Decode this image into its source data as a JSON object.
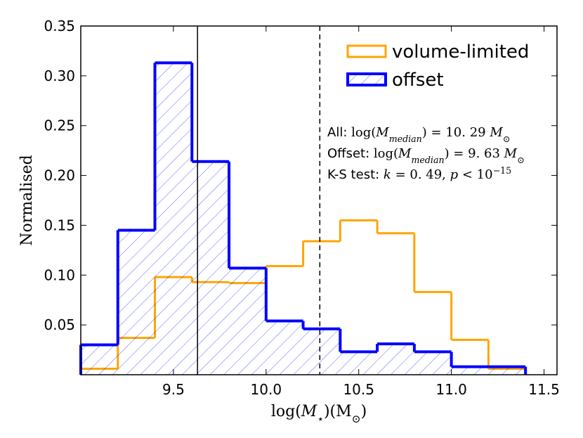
{
  "chart_data": {
    "type": "histogram",
    "bins": [
      9.0,
      9.2,
      9.4,
      9.6,
      9.8,
      10.0,
      10.2,
      10.4,
      10.6,
      10.8,
      11.0,
      11.2,
      11.4
    ],
    "series": [
      {
        "name": "volume-limited",
        "color": "#ffa500",
        "hatch": false,
        "values": [
          0.006,
          0.037,
          0.098,
          0.093,
          0.092,
          0.109,
          0.134,
          0.155,
          0.142,
          0.083,
          0.035,
          0.006
        ]
      },
      {
        "name": "offset",
        "color": "#0000ff",
        "hatch": true,
        "values": [
          0.03,
          0.145,
          0.313,
          0.214,
          0.107,
          0.054,
          0.046,
          0.023,
          0.031,
          0.023,
          0.008,
          0.008
        ]
      }
    ],
    "xlim": [
      9.0,
      11.57
    ],
    "ylim": [
      0,
      0.35
    ],
    "xticks": [
      9.5,
      {
        "value": 10.0,
        "label": "10.0"
      },
      10.5,
      {
        "value": 11.0,
        "label": "11.0"
      },
      11.5
    ],
    "yticks": [
      0.05,
      {
        "value": 0.1,
        "label": "0.10"
      },
      0.15,
      {
        "value": 0.2,
        "label": "0.20"
      },
      0.25,
      {
        "value": 0.3,
        "label": "0.30"
      },
      0.35
    ],
    "x_label": [
      {
        "text": "log("
      },
      {
        "text": "M",
        "italic": true
      },
      {
        "text": "⋆",
        "sub": true
      },
      {
        "text": ")(M"
      },
      {
        "text": "⊙",
        "sub": true
      },
      {
        "text": ")"
      }
    ],
    "y_label": "Normalised",
    "vlines": [
      {
        "value": 9.63,
        "dashed": false
      },
      {
        "value": 10.29,
        "dashed": true
      }
    ],
    "legend": "upper right",
    "annotations": [
      [
        {
          "text": "All: ",
          "bold": true
        },
        {
          "text": "log("
        },
        {
          "text": "M",
          "italic": true
        },
        {
          "text": "median",
          "sub": true,
          "italic": true
        },
        {
          "text": ") = 10. 29 "
        },
        {
          "text": "M",
          "italic": true
        },
        {
          "text": "⊙",
          "sub": true
        }
      ],
      [
        {
          "text": "Offset: ",
          "bold": true
        },
        {
          "text": "log("
        },
        {
          "text": "M",
          "italic": true
        },
        {
          "text": "median",
          "sub": true,
          "italic": true
        },
        {
          "text": ") = 9. 63 "
        },
        {
          "text": "M",
          "italic": true
        },
        {
          "text": "⊙",
          "sub": true
        }
      ],
      [
        {
          "text": "K-S test: ",
          "bold": true
        },
        {
          "text": "k",
          "italic": true
        },
        {
          "text": " = 0. 49, "
        },
        {
          "text": "p",
          "italic": true
        },
        {
          "text": " < 10"
        },
        {
          "text": "−15",
          "sup": true
        }
      ]
    ]
  }
}
